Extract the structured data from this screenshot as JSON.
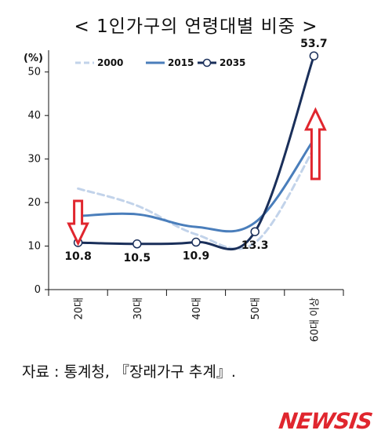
{
  "title": "< 1인가구의 연령대별 비중 >",
  "source": "자료 : 통계청, 『장래가구 추계』.",
  "logo": "NEWSIS",
  "chart_data": {
    "type": "line",
    "title": "< 1인가구의 연령대별 비중 >",
    "ylabel": "(%)",
    "xlabel": "",
    "categories": [
      "20대",
      "30대",
      "40대",
      "50대",
      "60대 이상"
    ],
    "ylim": [
      0,
      55
    ],
    "yticks": [
      0,
      10,
      20,
      30,
      40,
      50
    ],
    "grid": false,
    "legend_position": "top",
    "series": [
      {
        "name": "2000",
        "values": [
          23.2,
          19.3,
          12.7,
          10.8,
          32.4
        ],
        "color": "#c2d3ea",
        "style": "dashed"
      },
      {
        "name": "2015",
        "values": [
          16.9,
          17.3,
          14.4,
          15.4,
          34.5
        ],
        "color": "#4a7ebb",
        "style": "solid"
      },
      {
        "name": "2035",
        "values": [
          10.8,
          10.5,
          10.9,
          13.3,
          53.7
        ],
        "color": "#1a2f5a",
        "style": "solid-markers"
      }
    ],
    "data_labels": [
      "10.8",
      "10.5",
      "10.9",
      "13.3",
      "53.7"
    ],
    "annotations": [
      {
        "type": "arrow-down",
        "category": "20대",
        "color": "#e0262e"
      },
      {
        "type": "arrow-up",
        "category": "60대 이상",
        "color": "#e0262e"
      }
    ]
  }
}
